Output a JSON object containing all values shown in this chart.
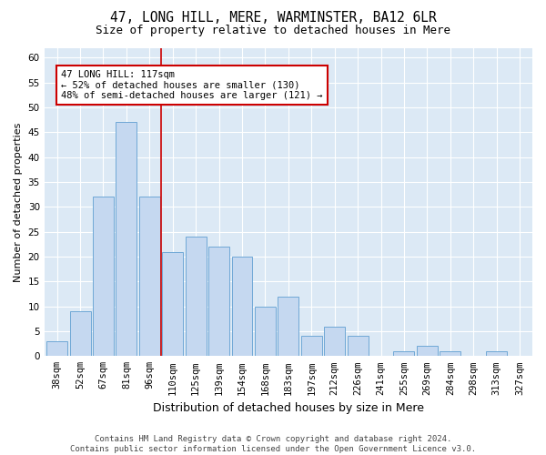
{
  "title": "47, LONG HILL, MERE, WARMINSTER, BA12 6LR",
  "subtitle": "Size of property relative to detached houses in Mere",
  "xlabel": "Distribution of detached houses by size in Mere",
  "ylabel": "Number of detached properties",
  "categories": [
    "38sqm",
    "52sqm",
    "67sqm",
    "81sqm",
    "96sqm",
    "110sqm",
    "125sqm",
    "139sqm",
    "154sqm",
    "168sqm",
    "183sqm",
    "197sqm",
    "212sqm",
    "226sqm",
    "241sqm",
    "255sqm",
    "269sqm",
    "284sqm",
    "298sqm",
    "313sqm",
    "327sqm"
  ],
  "values": [
    3,
    9,
    32,
    47,
    32,
    21,
    24,
    22,
    20,
    10,
    12,
    4,
    6,
    4,
    0,
    1,
    2,
    1,
    0,
    1,
    0
  ],
  "bar_color": "#c5d8f0",
  "bar_edge_color": "#6fa8d6",
  "annotation_text_line1": "47 LONG HILL: 117sqm",
  "annotation_text_line2": "← 52% of detached houses are smaller (130)",
  "annotation_text_line3": "48% of semi-detached houses are larger (121) →",
  "annotation_box_facecolor": "#ffffff",
  "annotation_box_edgecolor": "#cc0000",
  "vline_color": "#cc0000",
  "vline_x_index": 5,
  "ylim": [
    0,
    62
  ],
  "yticks": [
    0,
    5,
    10,
    15,
    20,
    25,
    30,
    35,
    40,
    45,
    50,
    55,
    60
  ],
  "plot_bg_color": "#dce9f5",
  "fig_bg_color": "#ffffff",
  "footer_line1": "Contains HM Land Registry data © Crown copyright and database right 2024.",
  "footer_line2": "Contains public sector information licensed under the Open Government Licence v3.0.",
  "title_fontsize": 10.5,
  "subtitle_fontsize": 9,
  "ylabel_fontsize": 8,
  "xlabel_fontsize": 9,
  "tick_fontsize": 7.5,
  "annotation_fontsize": 7.5,
  "footer_fontsize": 6.5
}
